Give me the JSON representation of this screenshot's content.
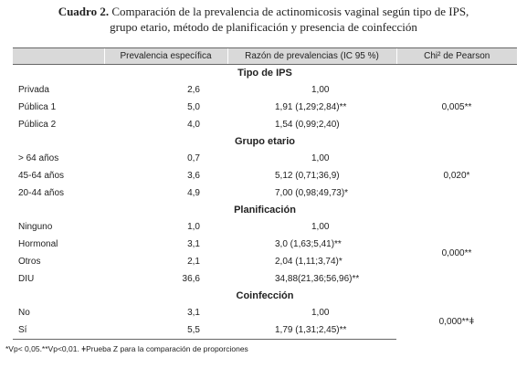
{
  "caption": {
    "label": "Cuadro 2.",
    "line1": "Comparación de la prevalencia de actinomicosis vaginal según tipo de IPS,",
    "line2": "grupo etario, método de planificación y presencia de coinfección"
  },
  "table": {
    "headers": [
      "",
      "Prevalencia específica",
      "Razón de prevalencias (IC 95 %)",
      "Chi² de Pearson"
    ],
    "sections": [
      {
        "title": "Tipo de IPS",
        "chi": "0,005**",
        "rows": [
          {
            "cat": "Privada",
            "prev": "2,6",
            "razon": "1,00"
          },
          {
            "cat": "Pública 1",
            "prev": "5,0",
            "razon": "1,91 (1,29;2,84)**"
          },
          {
            "cat": "Pública 2",
            "prev": "4,0",
            "razon": "1,54 (0,99;2,40)"
          }
        ]
      },
      {
        "title": "Grupo etario",
        "chi": "0,020*",
        "rows": [
          {
            "cat": "> 64 años",
            "prev": "0,7",
            "razon": "1,00"
          },
          {
            "cat": "45-64 años",
            "prev": "3,6",
            "razon": "5,12 (0,71;36,9)"
          },
          {
            "cat": "20-44 años",
            "prev": "4,9",
            "razon": "7,00 (0,98;49,73)*"
          }
        ]
      },
      {
        "title": "Planificación",
        "chi": "0,000**",
        "rows": [
          {
            "cat": "Ninguno",
            "prev": "1,0",
            "razon": "1,00"
          },
          {
            "cat": "Hormonal",
            "prev": "3,1",
            "razon": "3,0 (1,63;5,41)**"
          },
          {
            "cat": "Otros",
            "prev": "2,1",
            "razon": "2,04 (1,11;3,74)*"
          },
          {
            "cat": "DIU",
            "prev": "36,6",
            "razon": "34,88(21,36;56,96)**"
          }
        ]
      },
      {
        "title": "Coinfección",
        "chi": "0,000**ǂ",
        "rows": [
          {
            "cat": "No",
            "prev": "3,1",
            "razon": "1,00"
          },
          {
            "cat": "Sí",
            "prev": "5,5",
            "razon": "1,79 (1,31;2,45)**"
          }
        ]
      }
    ]
  },
  "footnote": "*Vp< 0,05.**Vp<0,01. ǂPrueba Z para la comparación de proporciones"
}
